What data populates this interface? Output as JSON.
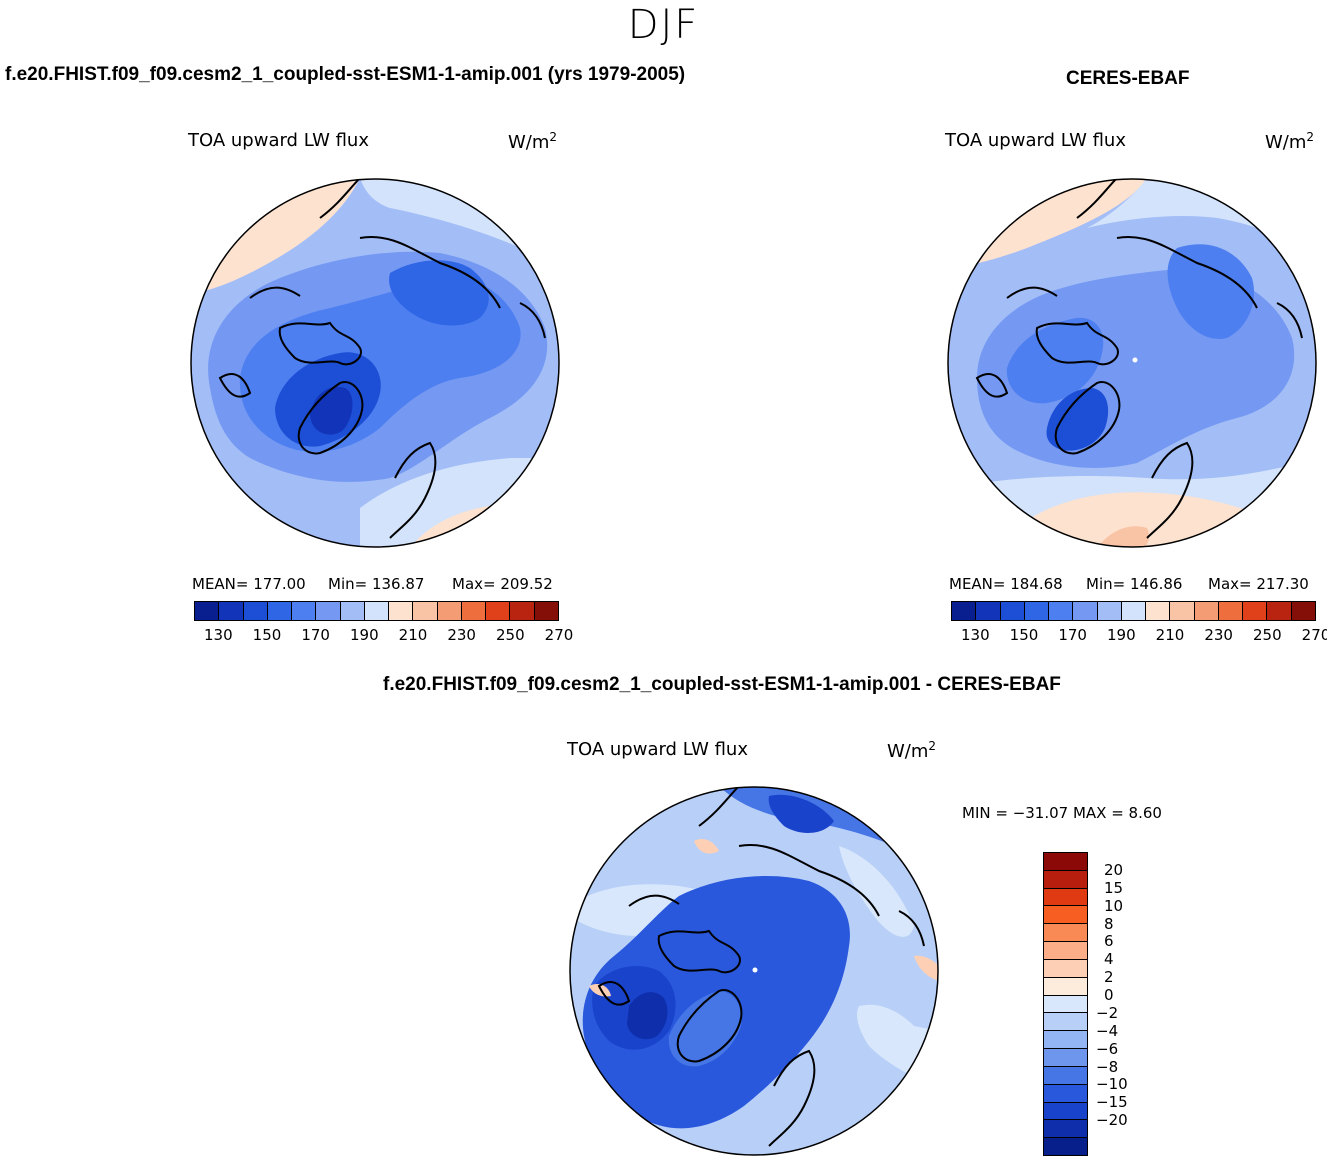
{
  "season": "DJF",
  "units_base": "W/m",
  "units_sup": "2",
  "left_panel": {
    "title": "f.e20.FHIST.f09_f09.cesm2_1_coupled-sst-ESM1-1-amip.001 (yrs 1979-2005)",
    "variable": "TOA upward LW flux",
    "mean_label": "MEAN= 177.00",
    "min_label": "Min= 136.87",
    "max_label": "Max= 209.52",
    "mean": 177.0,
    "min": 136.87,
    "max": 209.52
  },
  "right_panel": {
    "title": "CERES-EBAF",
    "variable": "TOA upward LW flux",
    "mean_label": "MEAN= 184.68",
    "min_label": "Min= 146.86",
    "max_label": "Max= 217.30",
    "mean": 184.68,
    "min": 146.86,
    "max": 217.3
  },
  "diff_panel": {
    "title": "f.e20.FHIST.f09_f09.cesm2_1_coupled-sst-ESM1-1-amip.001 - CERES-EBAF",
    "variable": "TOA upward LW flux",
    "minmax_label": "MIN = −31.07 MAX =    8.60",
    "min": -31.07,
    "max": 8.6
  },
  "abs_colorbar": {
    "colors": [
      "#0a1f8f",
      "#1234b8",
      "#1c4fd6",
      "#2f66e6",
      "#4d7ff0",
      "#7599f2",
      "#a3bdf7",
      "#d2e3fb",
      "#fde2cf",
      "#f9c4a5",
      "#f49c74",
      "#ee6e3e",
      "#e0401a",
      "#b82410",
      "#840f08"
    ],
    "labels": [
      "130",
      "150",
      "170",
      "190",
      "210",
      "230",
      "250",
      "270"
    ]
  },
  "diff_colorbar": {
    "colors": [
      "#8b0a08",
      "#b81e0d",
      "#e03a12",
      "#f65e22",
      "#f98a55",
      "#fbae88",
      "#fdd0b6",
      "#fdebdc",
      "#d8e7fb",
      "#b8d0f8",
      "#94b5f3",
      "#6e96ed",
      "#4676e6",
      "#2958dd",
      "#1a43cc",
      "#0e2eac",
      "#071f8a"
    ],
    "labels": [
      "20",
      "15",
      "10",
      "8",
      "6",
      "4",
      "2",
      "0",
      "−2",
      "−4",
      "−6",
      "−8",
      "−10",
      "−15",
      "−20"
    ]
  }
}
